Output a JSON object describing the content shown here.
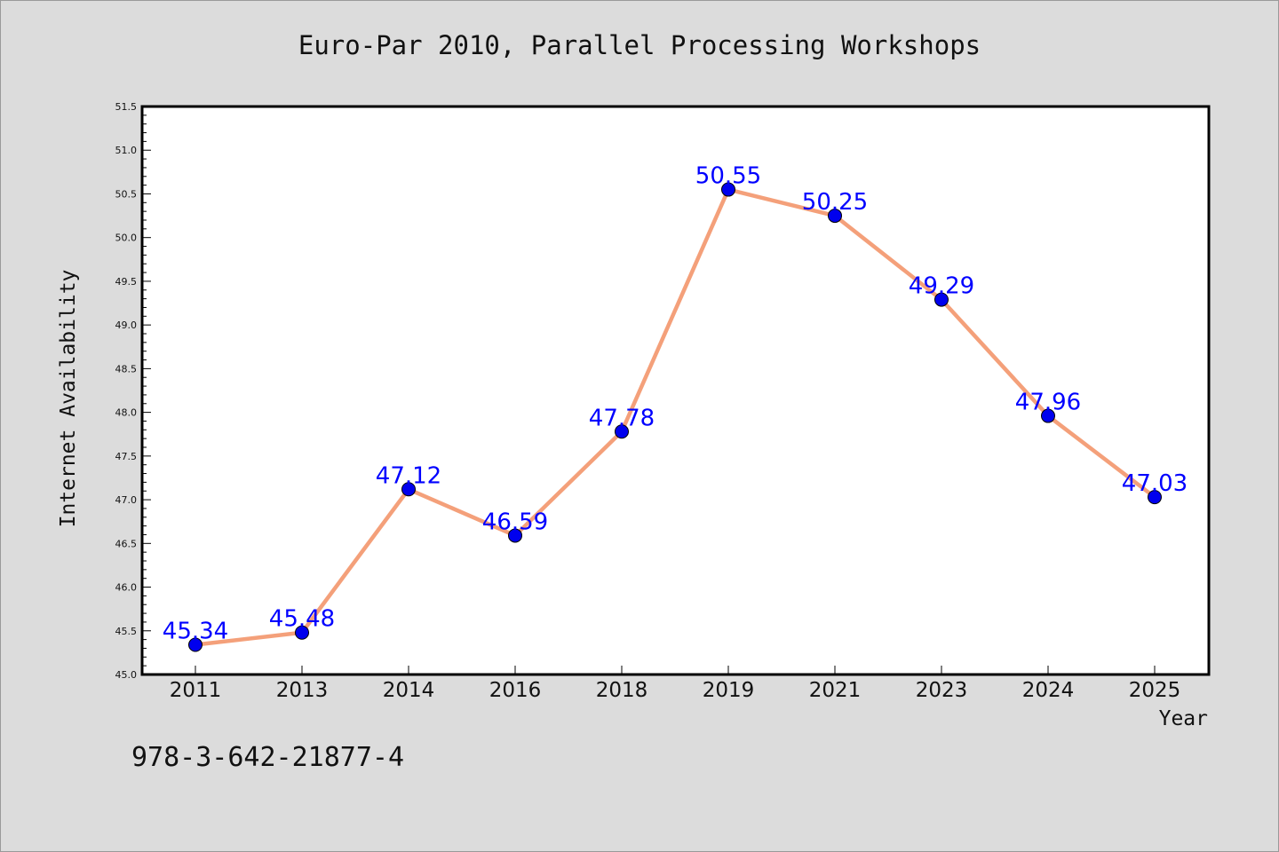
{
  "chart_data": {
    "type": "line",
    "title": "Euro-Par 2010, Parallel Processing Workshops",
    "xlabel": "Year",
    "ylabel": "Internet Availability",
    "categories": [
      "2011",
      "2013",
      "2014",
      "2016",
      "2018",
      "2019",
      "2021",
      "2023",
      "2024",
      "2025"
    ],
    "series": [
      {
        "values": [
          45.34,
          45.48,
          47.12,
          46.59,
          47.78,
          50.55,
          50.25,
          49.29,
          47.96,
          47.03
        ],
        "data_labels": [
          "45.34",
          "45.48",
          "47.12",
          "46.59",
          "47.78",
          "50.55",
          "50.25",
          "49.29",
          "47.96",
          "47.03"
        ]
      }
    ],
    "ylim": [
      45.0,
      51.5
    ],
    "yticks": [
      "45.0",
      "45.5",
      "46.0",
      "46.5",
      "47.0",
      "47.5",
      "48.0",
      "48.5",
      "49.0",
      "49.5",
      "50.0",
      "50.5",
      "51.0",
      "51.5"
    ],
    "grid": false,
    "colors": {
      "line": "#f4a07a",
      "marker": "#0000ee",
      "data_label": "#0000ff",
      "background": "#dcdcdc",
      "plot_background": "#ffffff"
    }
  },
  "footnote": "978-3-642-21877-4"
}
